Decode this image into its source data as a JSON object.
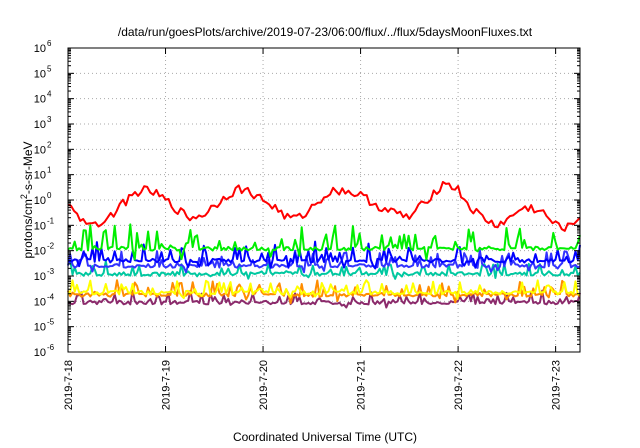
{
  "chart_data": {
    "type": "line",
    "title": "/data/run/goesPlots/archive/2019-07-23/06:00/flux/../flux/5daysMoonFluxes.txt",
    "xlabel": "Coordinated Universal Time (UTC)",
    "ylabel_main": "protons/cm",
    "ylabel_sup": "2",
    "ylabel_rest": "-s-sr-MeV",
    "y_scale": "log",
    "ylim": [
      1e-06,
      1000000.0
    ],
    "xlim": [
      "2019-07-18T00:00",
      "2019-07-23T06:00"
    ],
    "grid": true,
    "legend": "none",
    "x_ticks": [
      {
        "t": "2019-07-18T00:00",
        "label": "2019-7-18"
      },
      {
        "t": "2019-07-19T00:00",
        "label": "2019-7-19"
      },
      {
        "t": "2019-07-20T00:00",
        "label": "2019-7-20"
      },
      {
        "t": "2019-07-21T00:00",
        "label": "2019-7-21"
      },
      {
        "t": "2019-07-22T00:00",
        "label": "2019-7-22"
      },
      {
        "t": "2019-07-23T00:00",
        "label": "2019-7-23"
      }
    ],
    "y_ticks": [
      {
        "value": 1e-06,
        "base": "10",
        "exp": "-6"
      },
      {
        "value": 1e-05,
        "base": "10",
        "exp": "-5"
      },
      {
        "value": 0.0001,
        "base": "10",
        "exp": "-4"
      },
      {
        "value": 0.001,
        "base": "10",
        "exp": "-3"
      },
      {
        "value": 0.01,
        "base": "10",
        "exp": "-2"
      },
      {
        "value": 0.1,
        "base": "10",
        "exp": "-1"
      },
      {
        "value": 1.0,
        "base": "10",
        "exp": "0"
      },
      {
        "value": 10.0,
        "base": "10",
        "exp": "1"
      },
      {
        "value": 100.0,
        "base": "10",
        "exp": "2"
      },
      {
        "value": 1000.0,
        "base": "10",
        "exp": "3"
      },
      {
        "value": 10000.0,
        "base": "10",
        "exp": "4"
      },
      {
        "value": 100000.0,
        "base": "10",
        "exp": "5"
      },
      {
        "value": 1000000.0,
        "base": "10",
        "exp": "6"
      }
    ],
    "series": [
      {
        "color": "#ff0000",
        "points": [
          [
            "2019-07-18T00:00",
            0.5
          ],
          [
            "2019-07-18T03:00",
            0.2
          ],
          [
            "2019-07-18T06:00",
            0.12
          ],
          [
            "2019-07-18T09:00",
            0.15
          ],
          [
            "2019-07-18T12:00",
            0.4
          ],
          [
            "2019-07-18T15:00",
            1.2
          ],
          [
            "2019-07-18T18:00",
            2.5
          ],
          [
            "2019-07-18T21:00",
            2.0
          ],
          [
            "2019-07-19T00:00",
            1.0
          ],
          [
            "2019-07-19T03:00",
            0.4
          ],
          [
            "2019-07-19T06:00",
            0.2
          ],
          [
            "2019-07-19T09:00",
            0.25
          ],
          [
            "2019-07-19T12:00",
            0.6
          ],
          [
            "2019-07-19T15:00",
            1.5
          ],
          [
            "2019-07-19T18:00",
            2.8
          ],
          [
            "2019-07-19T21:00",
            2.0
          ],
          [
            "2019-07-20T00:00",
            1.0
          ],
          [
            "2019-07-20T03:00",
            0.5
          ],
          [
            "2019-07-20T06:00",
            0.2
          ],
          [
            "2019-07-20T09:00",
            0.2
          ],
          [
            "2019-07-20T12:00",
            0.5
          ],
          [
            "2019-07-20T15:00",
            1.5
          ],
          [
            "2019-07-20T18:00",
            2.5
          ],
          [
            "2019-07-20T21:00",
            2.2
          ],
          [
            "2019-07-21T00:00",
            1.5
          ],
          [
            "2019-07-21T03:00",
            0.8
          ],
          [
            "2019-07-21T06:00",
            0.4
          ],
          [
            "2019-07-21T09:00",
            0.3
          ],
          [
            "2019-07-21T12:00",
            0.2
          ],
          [
            "2019-07-21T15:00",
            0.6
          ],
          [
            "2019-07-21T18:00",
            2.0
          ],
          [
            "2019-07-21T21:00",
            5.0
          ],
          [
            "2019-07-22T00:00",
            2.5
          ],
          [
            "2019-07-22T03:00",
            0.5
          ],
          [
            "2019-07-22T06:00",
            0.2
          ],
          [
            "2019-07-22T09:00",
            0.1
          ],
          [
            "2019-07-22T12:00",
            0.15
          ],
          [
            "2019-07-22T15:00",
            0.4
          ],
          [
            "2019-07-22T18:00",
            0.5
          ],
          [
            "2019-07-22T21:00",
            0.3
          ],
          [
            "2019-07-23T00:00",
            0.1
          ],
          [
            "2019-07-23T03:00",
            0.08
          ],
          [
            "2019-07-23T06:00",
            0.2
          ]
        ]
      },
      {
        "color": "#00ee00",
        "level": 0.012,
        "spread": 0.6
      },
      {
        "color": "#0000ff",
        "level": 0.004,
        "spread": 0.45
      },
      {
        "color": "#3333ff",
        "level": 0.0025,
        "spread": 0.35
      },
      {
        "color": "#00c8a0",
        "level": 0.0012,
        "spread": 0.3
      },
      {
        "color": "#ffff00",
        "level": 0.00022,
        "spread": 0.3
      },
      {
        "color": "#ff8c00",
        "level": 0.00018,
        "spread": 0.35
      },
      {
        "color": "#8b2a6b",
        "level": 9e-05,
        "spread": 0.3
      }
    ]
  }
}
